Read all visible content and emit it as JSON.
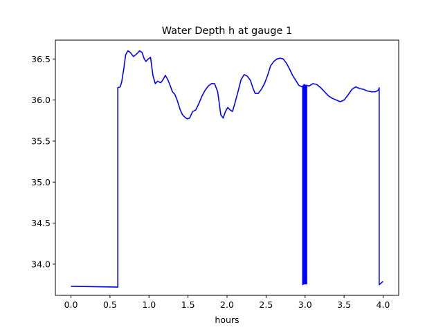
{
  "chart_data": {
    "type": "line",
    "title": "Water Depth h at gauge 1",
    "xlabel": "hours",
    "ylabel": "",
    "xlim": [
      -0.2,
      4.2
    ],
    "ylim": [
      33.62,
      36.73
    ],
    "grid": false,
    "xticks": [
      0.0,
      0.5,
      1.0,
      1.5,
      2.0,
      2.5,
      3.0,
      3.5,
      4.0
    ],
    "xtick_labels": [
      "0.0",
      "0.5",
      "1.0",
      "1.5",
      "2.0",
      "2.5",
      "3.0",
      "3.5",
      "4.0"
    ],
    "yticks": [
      34.0,
      34.5,
      35.0,
      35.5,
      36.0,
      36.5
    ],
    "ytick_labels": [
      "34.0",
      "34.5",
      "35.0",
      "35.5",
      "36.0",
      "36.5"
    ],
    "series": [
      {
        "color": "#0000ff",
        "x": [
          0.0,
          0.6,
          0.6,
          0.63,
          0.65,
          0.68,
          0.7,
          0.73,
          0.76,
          0.8,
          0.84,
          0.88,
          0.91,
          0.94,
          0.96,
          0.99,
          1.02,
          1.05,
          1.08,
          1.11,
          1.15,
          1.18,
          1.21,
          1.24,
          1.27,
          1.3,
          1.33,
          1.36,
          1.4,
          1.43,
          1.46,
          1.49,
          1.52,
          1.56,
          1.6,
          1.64,
          1.68,
          1.72,
          1.76,
          1.8,
          1.84,
          1.88,
          1.92,
          1.95,
          1.98,
          2.01,
          2.04,
          2.07,
          2.1,
          2.14,
          2.18,
          2.22,
          2.26,
          2.3,
          2.33,
          2.36,
          2.4,
          2.44,
          2.48,
          2.52,
          2.56,
          2.6,
          2.64,
          2.68,
          2.72,
          2.76,
          2.8,
          2.84,
          2.88,
          2.92,
          2.96,
          2.97,
          2.97,
          2.98,
          2.98,
          2.99,
          2.99,
          3.0,
          3.0,
          3.01,
          3.01,
          3.02,
          3.02,
          3.05,
          3.1,
          3.15,
          3.2,
          3.25,
          3.3,
          3.35,
          3.4,
          3.45,
          3.5,
          3.55,
          3.6,
          3.65,
          3.7,
          3.75,
          3.8,
          3.85,
          3.9,
          3.94,
          3.95,
          3.95,
          4.0
        ],
        "y": [
          33.73,
          33.72,
          36.15,
          36.16,
          36.22,
          36.4,
          36.55,
          36.6,
          36.58,
          36.53,
          36.56,
          36.6,
          36.58,
          36.5,
          36.47,
          36.5,
          36.52,
          36.3,
          36.2,
          36.23,
          36.21,
          36.25,
          36.3,
          36.25,
          36.18,
          36.1,
          36.07,
          36.0,
          35.88,
          35.82,
          35.79,
          35.77,
          35.78,
          35.86,
          35.88,
          35.96,
          36.05,
          36.12,
          36.17,
          36.2,
          36.2,
          36.1,
          35.82,
          35.78,
          35.86,
          35.91,
          35.88,
          35.86,
          35.96,
          36.1,
          36.25,
          36.31,
          36.29,
          36.24,
          36.15,
          36.08,
          36.08,
          36.13,
          36.2,
          36.3,
          36.42,
          36.47,
          36.5,
          36.51,
          36.5,
          36.45,
          36.38,
          36.3,
          36.24,
          36.18,
          36.16,
          36.17,
          33.75,
          33.76,
          36.18,
          36.19,
          33.76,
          33.76,
          36.18,
          36.18,
          33.76,
          33.76,
          36.18,
          36.17,
          36.2,
          36.19,
          36.15,
          36.1,
          36.05,
          36.02,
          36.0,
          35.98,
          36.0,
          36.06,
          36.13,
          36.16,
          36.14,
          36.13,
          36.11,
          36.1,
          36.1,
          36.12,
          36.15,
          33.75,
          33.79
        ]
      }
    ]
  }
}
